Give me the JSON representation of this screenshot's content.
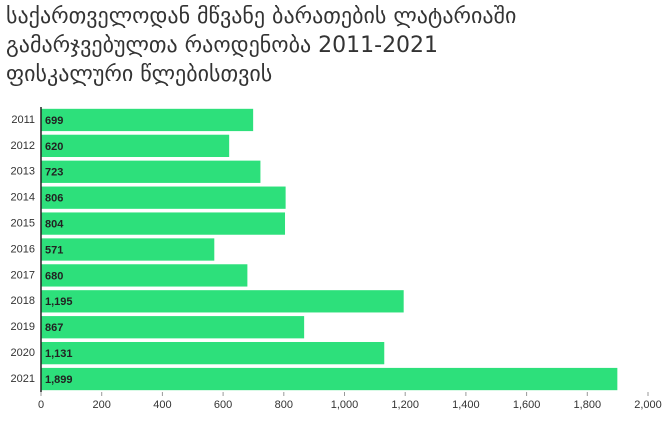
{
  "chart_data": {
    "type": "bar",
    "orientation": "horizontal",
    "title": "საქართველოდან მწვანე ბარათების ლატარიაში\nგამარჯვებულთა რაოდენობა 2011-2021\nფისკალური წლებისთვის",
    "categories": [
      "2011",
      "2012",
      "2013",
      "2014",
      "2015",
      "2016",
      "2017",
      "2018",
      "2019",
      "2020",
      "2021"
    ],
    "values": [
      699,
      620,
      723,
      806,
      804,
      571,
      680,
      1195,
      867,
      1131,
      1899
    ],
    "value_labels": [
      "699",
      "620",
      "723",
      "806",
      "804",
      "571",
      "680",
      "1,195",
      "867",
      "1,131",
      "1,899"
    ],
    "color": "#2de07b",
    "xlim": [
      0,
      2000
    ],
    "xticks": [
      0,
      200,
      400,
      600,
      800,
      {
        "value": 1000,
        "label": "1,000"
      },
      {
        "value": 1200,
        "label": "1,200"
      },
      {
        "value": 1400,
        "label": "1,400"
      },
      {
        "value": 1600,
        "label": "1,600"
      },
      {
        "value": 1800,
        "label": "1,800"
      },
      {
        "value": 2000,
        "label": "2,000"
      }
    ]
  }
}
